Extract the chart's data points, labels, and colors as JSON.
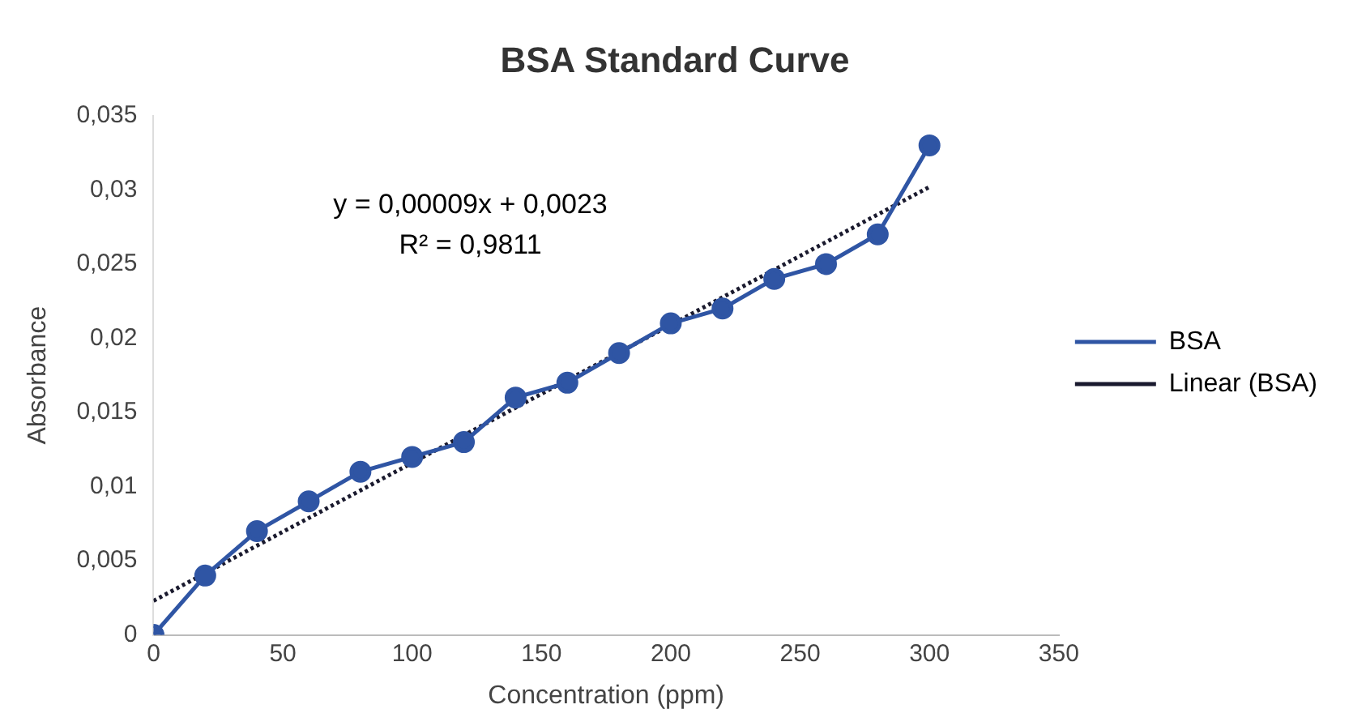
{
  "chart_data": {
    "type": "line",
    "title": "BSA Standard Curve",
    "xlabel": "Concentration (ppm)",
    "ylabel": "Absorbance",
    "x": [
      0,
      20,
      40,
      60,
      80,
      100,
      120,
      140,
      160,
      180,
      200,
      220,
      240,
      260,
      280,
      300
    ],
    "series": [
      {
        "name": "BSA",
        "color": "#2f55a4",
        "marker": "circle",
        "line_style": "solid",
        "values": [
          0,
          0.004,
          0.007,
          0.009,
          0.011,
          0.012,
          0.013,
          0.016,
          0.017,
          0.019,
          0.021,
          0.022,
          0.024,
          0.025,
          0.027,
          0.033
        ]
      },
      {
        "name": "Linear (BSA)",
        "type": "line",
        "color": "#1a1a2e",
        "marker": "none",
        "line_style": "dotted",
        "x": [
          0,
          300
        ],
        "values": [
          0.0023,
          0.0302
        ]
      }
    ],
    "xlim": [
      0,
      350
    ],
    "xticks": [
      0,
      50,
      100,
      150,
      200,
      250,
      300,
      350
    ],
    "ylim": [
      0,
      0.035
    ],
    "yticks": [
      {
        "value": 0,
        "label": "0"
      },
      {
        "value": 0.005,
        "label": "0,005"
      },
      {
        "value": 0.01,
        "label": "0,01"
      },
      {
        "value": 0.015,
        "label": "0,015"
      },
      {
        "value": 0.02,
        "label": "0,02"
      },
      {
        "value": 0.025,
        "label": "0,025"
      },
      {
        "value": 0.03,
        "label": "0,03"
      },
      {
        "value": 0.035,
        "label": "0,035"
      }
    ],
    "grid": false,
    "legend": "right",
    "annotations": [
      "y = 0,00009x + 0,0023",
      "R² = 0,9811"
    ]
  }
}
